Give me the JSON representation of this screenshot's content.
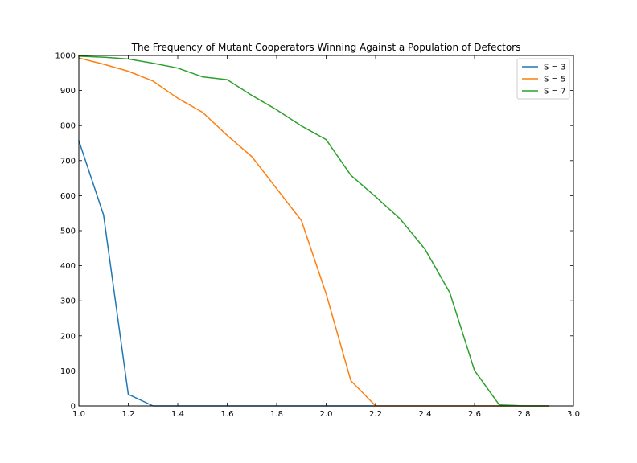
{
  "chart_data": {
    "type": "line",
    "title": "The Frequency of Mutant Cooperators Winning Against a Population of Defectors",
    "xlabel": "",
    "ylabel": "",
    "xlim": [
      1.0,
      3.0
    ],
    "ylim": [
      0,
      1000
    ],
    "xticks": [
      "1.0",
      "1.2",
      "1.4",
      "1.6",
      "1.8",
      "2.0",
      "2.2",
      "2.4",
      "2.6",
      "2.8",
      "3.0"
    ],
    "yticks": [
      "0",
      "100",
      "200",
      "300",
      "400",
      "500",
      "600",
      "700",
      "800",
      "900",
      "1000"
    ],
    "grid": false,
    "legend_position": "top-right",
    "x": [
      1.0,
      1.1,
      1.2,
      1.3,
      1.4,
      1.5,
      1.6,
      1.7,
      1.8,
      1.9,
      2.0,
      2.1,
      2.2,
      2.3,
      2.4,
      2.5,
      2.6,
      2.7,
      2.8,
      2.9
    ],
    "series": [
      {
        "name": "S = 3",
        "color": "#1f77b4",
        "values": [
          757,
          545,
          33,
          0,
          0,
          0,
          0,
          0,
          0,
          0,
          0,
          0,
          0,
          0,
          0,
          0,
          0,
          0,
          0,
          0
        ]
      },
      {
        "name": "S = 5",
        "color": "#ff7f0e",
        "values": [
          993,
          975,
          955,
          927,
          878,
          838,
          772,
          711,
          620,
          529,
          320,
          72,
          0,
          0,
          0,
          0,
          0,
          0,
          0,
          0
        ]
      },
      {
        "name": "S = 7",
        "color": "#2ca02c",
        "values": [
          998,
          995,
          990,
          978,
          964,
          939,
          931,
          886,
          845,
          799,
          760,
          658,
          597,
          533,
          447,
          323,
          101,
          3,
          0,
          0
        ]
      }
    ]
  }
}
